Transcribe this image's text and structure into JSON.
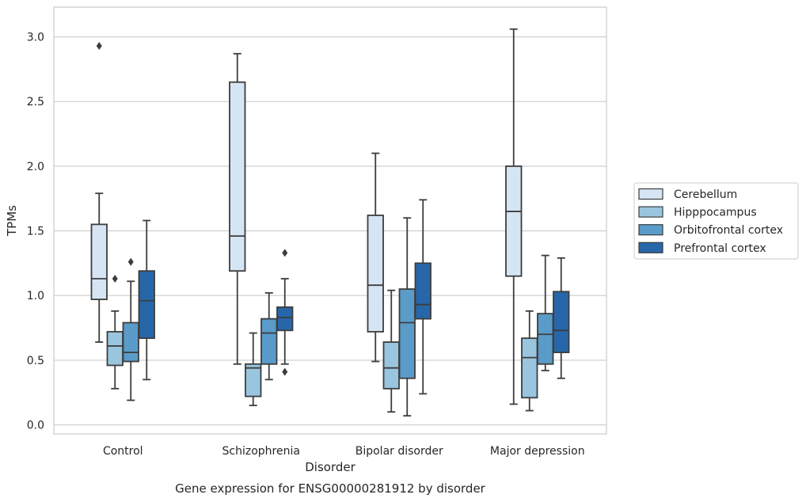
{
  "chart_data": {
    "type": "box",
    "title": "",
    "caption": "Gene expression for ENSG00000281912 by disorder",
    "xlabel": "Disorder",
    "ylabel": "TPMs",
    "ylim": [
      -0.07,
      3.23
    ],
    "yticks": [
      "0.0",
      "0.5",
      "1.0",
      "1.5",
      "2.0",
      "2.5",
      "3.0"
    ],
    "grid": "horizontal",
    "legend_position": "right",
    "categories": [
      "Control",
      "Schizophrenia",
      "Bipolar disorder",
      "Major depression"
    ],
    "series": [
      {
        "name": "Cerebellum",
        "color": "#d6e5f4",
        "boxes": [
          {
            "whislo": 0.64,
            "q1": 0.97,
            "med": 1.13,
            "q3": 1.55,
            "whishi": 1.79,
            "fliers": [
              2.93
            ]
          },
          {
            "whislo": 0.47,
            "q1": 1.19,
            "med": 1.46,
            "q3": 2.65,
            "whishi": 2.87,
            "fliers": []
          },
          {
            "whislo": 0.49,
            "q1": 0.72,
            "med": 1.08,
            "q3": 1.62,
            "whishi": 2.1,
            "fliers": []
          },
          {
            "whislo": 0.16,
            "q1": 1.15,
            "med": 1.65,
            "q3": 2.0,
            "whishi": 3.06,
            "fliers": []
          }
        ]
      },
      {
        "name": "Hipppocampus",
        "color": "#9ac5df",
        "boxes": [
          {
            "whislo": 0.28,
            "q1": 0.46,
            "med": 0.61,
            "q3": 0.72,
            "whishi": 0.88,
            "fliers": [
              1.13
            ]
          },
          {
            "whislo": 0.15,
            "q1": 0.22,
            "med": 0.44,
            "q3": 0.47,
            "whishi": 0.71,
            "fliers": []
          },
          {
            "whislo": 0.1,
            "q1": 0.28,
            "med": 0.44,
            "q3": 0.64,
            "whishi": 1.04,
            "fliers": []
          },
          {
            "whislo": 0.11,
            "q1": 0.21,
            "med": 0.52,
            "q3": 0.67,
            "whishi": 0.88,
            "fliers": []
          }
        ]
      },
      {
        "name": "Orbitofrontal cortex",
        "color": "#5a9bc9",
        "boxes": [
          {
            "whislo": 0.19,
            "q1": 0.49,
            "med": 0.56,
            "q3": 0.79,
            "whishi": 1.11,
            "fliers": [
              1.26
            ]
          },
          {
            "whislo": 0.35,
            "q1": 0.47,
            "med": 0.71,
            "q3": 0.82,
            "whishi": 1.02,
            "fliers": []
          },
          {
            "whislo": 0.07,
            "q1": 0.36,
            "med": 0.79,
            "q3": 1.05,
            "whishi": 1.6,
            "fliers": []
          },
          {
            "whislo": 0.42,
            "q1": 0.47,
            "med": 0.7,
            "q3": 0.86,
            "whishi": 1.31,
            "fliers": []
          }
        ]
      },
      {
        "name": "Prefrontal cortex",
        "color": "#2767a9",
        "boxes": [
          {
            "whislo": 0.35,
            "q1": 0.67,
            "med": 0.96,
            "q3": 1.19,
            "whishi": 1.58,
            "fliers": []
          },
          {
            "whislo": 0.47,
            "q1": 0.73,
            "med": 0.83,
            "q3": 0.91,
            "whishi": 1.13,
            "fliers": [
              1.33,
              0.41
            ]
          },
          {
            "whislo": 0.24,
            "q1": 0.82,
            "med": 0.93,
            "q3": 1.25,
            "whishi": 1.74,
            "fliers": []
          },
          {
            "whislo": 0.36,
            "q1": 0.56,
            "med": 0.73,
            "q3": 1.03,
            "whishi": 1.29,
            "fliers": []
          }
        ]
      }
    ]
  }
}
